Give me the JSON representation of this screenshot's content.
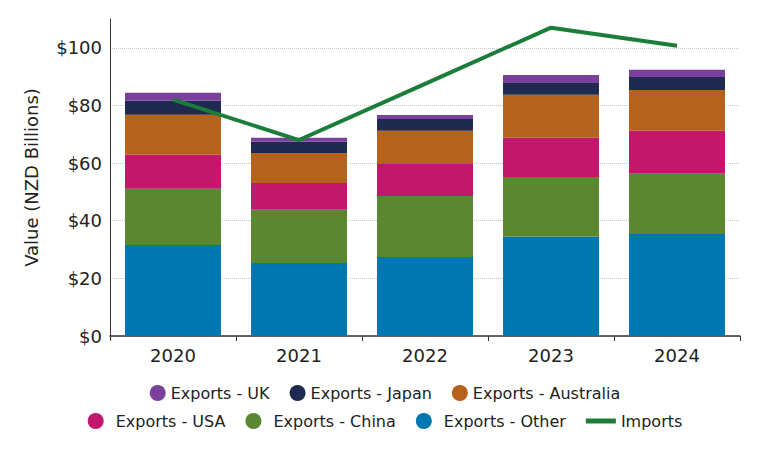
{
  "chart_data": {
    "type": "bar",
    "y_label": "Value (NZD Billions)",
    "categories": [
      "2020",
      "2021",
      "2022",
      "2023",
      "2024"
    ],
    "stacked": true,
    "grid": true,
    "legend": "bottom",
    "data_labels": false,
    "ylim": [
      0,
      110
    ],
    "yticks": [
      {
        "value": 0,
        "label": "$0"
      },
      {
        "value": 20,
        "label": "$20"
      },
      {
        "value": 40,
        "label": "$40"
      },
      {
        "value": 60,
        "label": "$60"
      },
      {
        "value": 80,
        "label": "$80"
      },
      {
        "value": 100,
        "label": "$100"
      }
    ],
    "series": [
      {
        "name": "Exports - UK",
        "type": "bar",
        "color": "#7b3f9e",
        "values": [
          2.8,
          1.4,
          1.4,
          2.8,
          2.5
        ]
      },
      {
        "name": "Exports - Japan",
        "type": "bar",
        "color": "#1e2a4f",
        "values": [
          4.8,
          3.9,
          4.1,
          4.1,
          4.5
        ]
      },
      {
        "name": "Exports - Australia",
        "type": "bar",
        "color": "#b5621c",
        "values": [
          13.9,
          10.4,
          11.5,
          14.9,
          14.2
        ]
      },
      {
        "name": "Exports - USA",
        "type": "bar",
        "color": "#c2176d",
        "values": [
          11.8,
          9.3,
          11.1,
          13.6,
          14.9
        ]
      },
      {
        "name": "Exports - China",
        "type": "bar",
        "color": "#5b8731",
        "values": [
          19.5,
          18.5,
          21.2,
          20.8,
          20.9
        ]
      },
      {
        "name": "Exports - Other",
        "type": "bar",
        "color": "#0077ae",
        "values": [
          31.6,
          25.3,
          27.4,
          34.4,
          35.4
        ]
      },
      {
        "name": "Imports",
        "type": "line",
        "color": "#1b7d3a",
        "values": [
          82,
          68,
          87.5,
          107,
          100.7
        ]
      }
    ]
  }
}
